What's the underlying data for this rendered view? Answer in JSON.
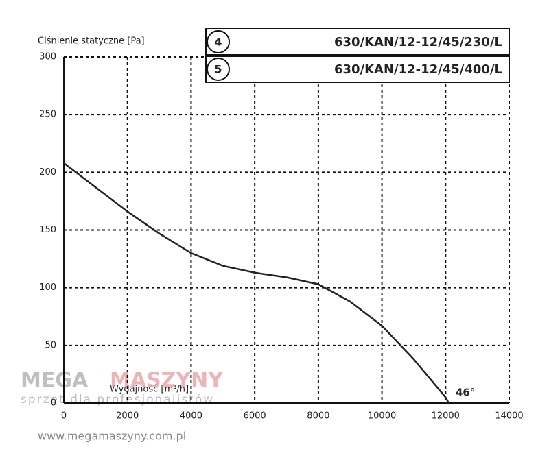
{
  "chart_data": {
    "type": "line",
    "y_label": "Ciśnienie statyczne [Pa]",
    "x_label": "Wydajność [m³/h]",
    "legend": [
      {
        "number": "4",
        "label": "630/KAN/12-12/45/230/L"
      },
      {
        "number": "5",
        "label": "630/KAN/12-12/45/400/L"
      }
    ],
    "annotation": "46°",
    "x": [
      0,
      1000,
      2000,
      3000,
      4000,
      5000,
      6000,
      7000,
      8000,
      9000,
      10000,
      11000,
      12000,
      12100
    ],
    "series": [
      {
        "color": "#222222",
        "values": [
          208,
          187,
          166,
          147,
          130,
          119,
          113,
          109,
          103,
          88,
          67,
          38,
          5,
          0
        ]
      }
    ],
    "xlim": [
      0,
      14000
    ],
    "xticks": [
      0,
      2000,
      4000,
      6000,
      8000,
      10000,
      12000,
      14000
    ],
    "ylim": [
      0,
      300
    ],
    "yticks": [
      0,
      50,
      100,
      150,
      200,
      250,
      300
    ],
    "grid": true
  },
  "watermark": {
    "brand_left": "MEGA",
    "brand_right": "MASZYNY",
    "tagline": "sprzęt dla profesjonalistów",
    "url": "www.megamaszyny.com.pl"
  }
}
